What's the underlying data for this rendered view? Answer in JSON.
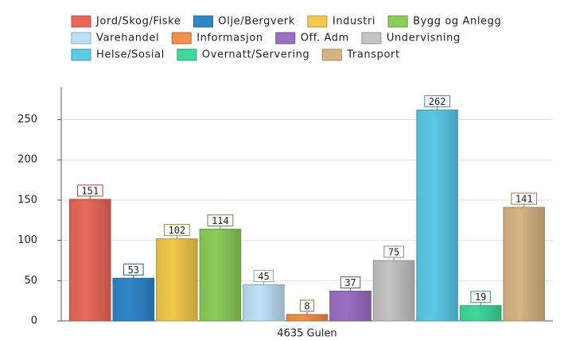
{
  "chart_data": {
    "type": "bar",
    "categories": [
      "4635 Gulen"
    ],
    "series": [
      {
        "name": "Jord/Skog/Fiske",
        "color": "#e8695a",
        "values": [
          151
        ]
      },
      {
        "name": "Olje/Bergverk",
        "color": "#2f86c9",
        "values": [
          53
        ]
      },
      {
        "name": "Industri",
        "color": "#f2c94c",
        "values": [
          102
        ]
      },
      {
        "name": "Bygg og Anlegg",
        "color": "#8ccd5a",
        "values": [
          114
        ]
      },
      {
        "name": "Varehandel",
        "color": "#bfe1f7",
        "values": [
          45
        ]
      },
      {
        "name": "Informasjon",
        "color": "#f0904a",
        "values": [
          8
        ]
      },
      {
        "name": "Off. Adm",
        "color": "#9a70c2",
        "values": [
          37
        ]
      },
      {
        "name": "Undervisning",
        "color": "#c4c4c4",
        "values": [
          75
        ]
      },
      {
        "name": "Helse/Sosial",
        "color": "#5cc9e6",
        "values": [
          262
        ]
      },
      {
        "name": "Overnatt/Servering",
        "color": "#3fd99a",
        "values": [
          19
        ]
      },
      {
        "name": "Transport",
        "color": "#d6b585",
        "values": [
          141
        ]
      }
    ],
    "ylim": [
      0,
      290
    ],
    "yticks": [
      0,
      50,
      100,
      150,
      200,
      250
    ],
    "grid": true,
    "legend": "top"
  }
}
